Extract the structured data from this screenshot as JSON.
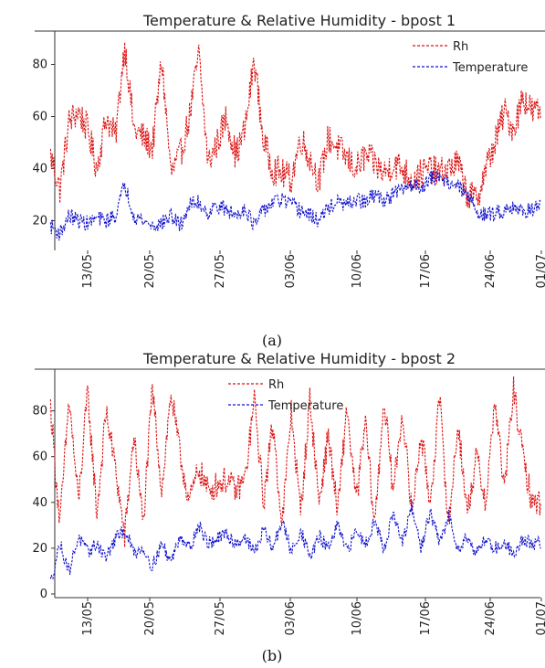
{
  "chart_data": [
    {
      "type": "line",
      "title": "Temperature & Relative Humidity - bpost 1",
      "caption": "(a)",
      "x_tick_labels": [
        "13/05",
        "20/05",
        "27/05",
        "03/06",
        "10/06",
        "17/06",
        "24/06",
        "01/07"
      ],
      "y_ticks": [
        20,
        40,
        60,
        80
      ],
      "ylim": [
        10,
        90
      ],
      "xlim": [
        "2019-05-08",
        "2019-07-01"
      ],
      "legend_position": "top-right",
      "series": [
        {
          "name": "Rh",
          "color": "#dd1111",
          "style": "dashed",
          "x": [
            "2019-05-09",
            "2019-05-10",
            "2019-05-11",
            "2019-05-12",
            "2019-05-13",
            "2019-05-14",
            "2019-05-15",
            "2019-05-16",
            "2019-05-17",
            "2019-05-18",
            "2019-05-19",
            "2019-05-20",
            "2019-05-21",
            "2019-05-22",
            "2019-05-23",
            "2019-05-24",
            "2019-05-25",
            "2019-05-26",
            "2019-05-27",
            "2019-05-28",
            "2019-05-29",
            "2019-05-30",
            "2019-05-31",
            "2019-06-01",
            "2019-06-02",
            "2019-06-03",
            "2019-06-04",
            "2019-06-05",
            "2019-06-06",
            "2019-06-07",
            "2019-06-08",
            "2019-06-09",
            "2019-06-10",
            "2019-06-11",
            "2019-06-12",
            "2019-06-13",
            "2019-06-14",
            "2019-06-15",
            "2019-06-16",
            "2019-06-17",
            "2019-06-18",
            "2019-06-19",
            "2019-06-20",
            "2019-06-21",
            "2019-06-22",
            "2019-06-23",
            "2019-06-24",
            "2019-06-25",
            "2019-06-26",
            "2019-06-27",
            "2019-06-28",
            "2019-06-29",
            "2019-06-30"
          ],
          "values": [
            45,
            32,
            58,
            62,
            55,
            40,
            60,
            52,
            88,
            55,
            52,
            48,
            82,
            38,
            45,
            60,
            84,
            42,
            50,
            60,
            45,
            55,
            82,
            50,
            40,
            38,
            36,
            52,
            44,
            35,
            52,
            48,
            44,
            40,
            45,
            42,
            38,
            42,
            40,
            36,
            38,
            40,
            38,
            40,
            42,
            30,
            28,
            40,
            50,
            62,
            55,
            68,
            62
          ]
        },
        {
          "name": "Temperature",
          "color": "#1111cc",
          "style": "dashed",
          "x": [
            "2019-05-09",
            "2019-05-10",
            "2019-05-11",
            "2019-05-12",
            "2019-05-13",
            "2019-05-14",
            "2019-05-15",
            "2019-05-16",
            "2019-05-17",
            "2019-05-18",
            "2019-05-19",
            "2019-05-20",
            "2019-05-21",
            "2019-05-22",
            "2019-05-23",
            "2019-05-24",
            "2019-05-25",
            "2019-05-26",
            "2019-05-27",
            "2019-05-28",
            "2019-05-29",
            "2019-05-30",
            "2019-05-31",
            "2019-06-01",
            "2019-06-02",
            "2019-06-03",
            "2019-06-04",
            "2019-06-05",
            "2019-06-06",
            "2019-06-07",
            "2019-06-08",
            "2019-06-09",
            "2019-06-10",
            "2019-06-11",
            "2019-06-12",
            "2019-06-13",
            "2019-06-14",
            "2019-06-15",
            "2019-06-16",
            "2019-06-17",
            "2019-06-18",
            "2019-06-19",
            "2019-06-20",
            "2019-06-21",
            "2019-06-22",
            "2019-06-23",
            "2019-06-24",
            "2019-06-25",
            "2019-06-26",
            "2019-06-27",
            "2019-06-28",
            "2019-06-29",
            "2019-06-30"
          ],
          "values": [
            18,
            15,
            22,
            20,
            19,
            21,
            20,
            22,
            34,
            22,
            20,
            18,
            19,
            22,
            18,
            26,
            27,
            23,
            26,
            24,
            22,
            25,
            18,
            24,
            27,
            28,
            26,
            24,
            22,
            20,
            25,
            27,
            26,
            28,
            27,
            30,
            28,
            30,
            32,
            34,
            33,
            36,
            37,
            35,
            33,
            30,
            24,
            22,
            23,
            24,
            26,
            23,
            25
          ]
        }
      ]
    },
    {
      "type": "line",
      "title": "Temperature & Relative Humidity - bpost 2",
      "caption": "(b)",
      "x_tick_labels": [
        "13/05",
        "20/05",
        "27/05",
        "03/06",
        "10/06",
        "17/06",
        "24/06",
        "01/07"
      ],
      "y_ticks": [
        0,
        20,
        40,
        60,
        80
      ],
      "ylim": [
        0,
        95
      ],
      "xlim": [
        "2019-05-08",
        "2019-07-01"
      ],
      "legend_position": "top-center",
      "series": [
        {
          "name": "Rh",
          "color": "#dd1111",
          "style": "dashed",
          "x": [
            "2019-05-09",
            "2019-05-10",
            "2019-05-11",
            "2019-05-12",
            "2019-05-13",
            "2019-05-14",
            "2019-05-15",
            "2019-05-16",
            "2019-05-17",
            "2019-05-18",
            "2019-05-19",
            "2019-05-20",
            "2019-05-21",
            "2019-05-22",
            "2019-05-23",
            "2019-05-24",
            "2019-05-25",
            "2019-05-26",
            "2019-05-27",
            "2019-05-28",
            "2019-05-29",
            "2019-05-30",
            "2019-05-31",
            "2019-06-01",
            "2019-06-02",
            "2019-06-03",
            "2019-06-04",
            "2019-06-05",
            "2019-06-06",
            "2019-06-07",
            "2019-06-08",
            "2019-06-09",
            "2019-06-10",
            "2019-06-11",
            "2019-06-12",
            "2019-06-13",
            "2019-06-14",
            "2019-06-15",
            "2019-06-16",
            "2019-06-17",
            "2019-06-18",
            "2019-06-19",
            "2019-06-20",
            "2019-06-21",
            "2019-06-22",
            "2019-06-23",
            "2019-06-24",
            "2019-06-25",
            "2019-06-26",
            "2019-06-27",
            "2019-06-28",
            "2019-06-29",
            "2019-06-30"
          ],
          "values": [
            82,
            30,
            85,
            40,
            88,
            35,
            80,
            55,
            25,
            70,
            30,
            90,
            45,
            88,
            60,
            40,
            55,
            45,
            48,
            50,
            45,
            50,
            85,
            40,
            75,
            30,
            80,
            35,
            85,
            40,
            70,
            35,
            82,
            40,
            75,
            30,
            85,
            45,
            80,
            35,
            70,
            40,
            85,
            30,
            75,
            35,
            60,
            40,
            85,
            45,
            90,
            60,
            40
          ]
        },
        {
          "name": "Temperature",
          "color": "#1111cc",
          "style": "dashed",
          "x": [
            "2019-05-09",
            "2019-05-10",
            "2019-05-11",
            "2019-05-12",
            "2019-05-13",
            "2019-05-14",
            "2019-05-15",
            "2019-05-16",
            "2019-05-17",
            "2019-05-18",
            "2019-05-19",
            "2019-05-20",
            "2019-05-21",
            "2019-05-22",
            "2019-05-23",
            "2019-05-24",
            "2019-05-25",
            "2019-05-26",
            "2019-05-27",
            "2019-05-28",
            "2019-05-29",
            "2019-05-30",
            "2019-05-31",
            "2019-06-01",
            "2019-06-02",
            "2019-06-03",
            "2019-06-04",
            "2019-06-05",
            "2019-06-06",
            "2019-06-07",
            "2019-06-08",
            "2019-06-09",
            "2019-06-10",
            "2019-06-11",
            "2019-06-12",
            "2019-06-13",
            "2019-06-14",
            "2019-06-15",
            "2019-06-16",
            "2019-06-17",
            "2019-06-18",
            "2019-06-19",
            "2019-06-20",
            "2019-06-21",
            "2019-06-22",
            "2019-06-23",
            "2019-06-24",
            "2019-06-25",
            "2019-06-26",
            "2019-06-27",
            "2019-06-28",
            "2019-06-29",
            "2019-06-30"
          ],
          "values": [
            5,
            22,
            10,
            25,
            18,
            22,
            16,
            24,
            28,
            18,
            20,
            12,
            22,
            14,
            26,
            20,
            30,
            22,
            24,
            26,
            22,
            25,
            18,
            28,
            20,
            32,
            18,
            28,
            16,
            25,
            20,
            30,
            18,
            28,
            22,
            32,
            20,
            35,
            22,
            38,
            20,
            36,
            22,
            34,
            20,
            25,
            18,
            24,
            20,
            22,
            18,
            24,
            22
          ]
        }
      ]
    }
  ]
}
